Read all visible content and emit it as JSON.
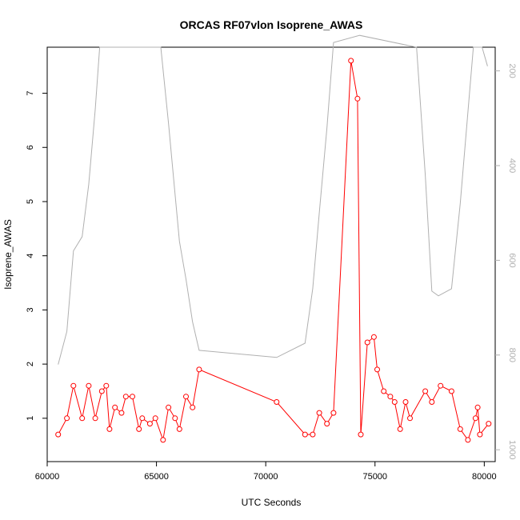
{
  "chart_data": {
    "type": "line",
    "title": "ORCAS RF07vlon Isoprene_AWAS",
    "xlabel": "UTC Seconds",
    "ylabel": "Isoprene_AWAS",
    "xlim": [
      60000,
      80500
    ],
    "ylim": [
      0.2,
      7.85
    ],
    "xticks": [
      60000,
      65000,
      70000,
      75000,
      80000
    ],
    "yticks": [
      1,
      2,
      3,
      4,
      5,
      6,
      7
    ],
    "right_axis": {
      "ticks": [
        200,
        400,
        600,
        800,
        1000
      ],
      "range_top": 150,
      "range_bottom": 1025,
      "color": "#b0b0b0"
    },
    "series": [
      {
        "color": "#ff0000",
        "marker": "open-circle",
        "x": [
          60500,
          60900,
          61200,
          61600,
          61900,
          62200,
          62500,
          62700,
          62850,
          63100,
          63400,
          63600,
          63900,
          64200,
          64350,
          64700,
          64950,
          65300,
          65550,
          65850,
          66050,
          66350,
          66650,
          66950,
          70500,
          71800,
          72150,
          72450,
          72800,
          73100,
          73900,
          74200,
          74350,
          74650,
          74950,
          75100,
          75400,
          75700,
          75900,
          76150,
          76400,
          76600,
          77300,
          77600,
          78000,
          78500,
          78900,
          79250,
          79600,
          79700,
          79800,
          80200
        ],
        "y": [
          0.7,
          1.0,
          1.6,
          1.0,
          1.6,
          1.0,
          1.5,
          1.6,
          0.8,
          1.2,
          1.1,
          1.4,
          1.4,
          0.8,
          1.0,
          0.9,
          1.0,
          0.6,
          1.2,
          1.0,
          0.8,
          1.4,
          1.2,
          1.9,
          1.3,
          0.7,
          0.7,
          1.1,
          0.9,
          1.1,
          7.6,
          6.9,
          0.7,
          2.4,
          2.5,
          1.9,
          1.5,
          1.4,
          1.3,
          0.8,
          1.3,
          1.0,
          1.5,
          1.3,
          1.6,
          1.5,
          0.8,
          0.6,
          1.0,
          1.2,
          0.7,
          0.9
        ]
      },
      {
        "color": "#b0b0b0",
        "axis": "right",
        "x": [
          60500,
          60900,
          61200,
          61600,
          61900,
          62200,
          62400,
          65200,
          65550,
          65850,
          66050,
          66350,
          66650,
          66950,
          70500,
          71800,
          72150,
          72450,
          72800,
          73100,
          74300,
          76900,
          77300,
          77600,
          77900,
          78500,
          78900,
          79500,
          79900,
          80150
        ],
        "y": [
          820,
          750,
          580,
          550,
          440,
          280,
          150,
          150,
          310,
          460,
          560,
          640,
          730,
          790,
          805,
          775,
          660,
          500,
          320,
          140,
          125,
          150,
          420,
          665,
          675,
          660,
          480,
          150,
          150,
          190
        ]
      }
    ]
  }
}
